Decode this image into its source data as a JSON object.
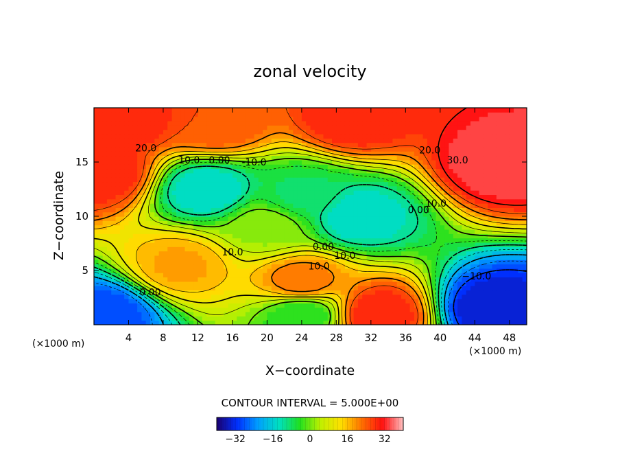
{
  "chart_data": {
    "type": "heatmap",
    "subtype": "filled-contour",
    "title": "zonal velocity",
    "xlabel": "X−coordinate",
    "ylabel": "Z−coordinate",
    "x_unit_left": "(×1000 m)",
    "x_unit_right": "(×1000 m)",
    "xlim": [
      0,
      50
    ],
    "ylim": [
      0,
      20
    ],
    "x_ticks": [
      4,
      8,
      12,
      16,
      20,
      24,
      28,
      32,
      36,
      40,
      44,
      48
    ],
    "y_ticks": [
      5,
      10,
      15
    ],
    "contour_interval_label": "CONTOUR INTERVAL = 5.000E+00",
    "contour_interval": 5,
    "colorbar": {
      "range": [
        -40,
        40
      ],
      "ticks": [
        -32,
        -16,
        0,
        16,
        32
      ],
      "colors": [
        "#1a0070",
        "#0030ff",
        "#00a0ff",
        "#00e0c0",
        "#20e020",
        "#c0f000",
        "#ffe000",
        "#ff7000",
        "#ff1010",
        "#ffc0c0"
      ]
    },
    "field_features": [
      {
        "x": 47,
        "z": 15,
        "value": 35
      },
      {
        "x": 1,
        "z": 14,
        "value": 30
      },
      {
        "x": 4,
        "z": 19,
        "value": 30
      },
      {
        "x": 14,
        "z": 18.5,
        "value": 25
      },
      {
        "x": 30,
        "z": 19,
        "value": 30
      },
      {
        "x": 13,
        "z": 12.5,
        "value": -15
      },
      {
        "x": 30.5,
        "z": 10,
        "value": -15
      },
      {
        "x": 24,
        "z": 12,
        "value": -8
      },
      {
        "x": 24,
        "z": 4,
        "value": 22
      },
      {
        "x": 33,
        "z": 1,
        "value": 30
      },
      {
        "x": 10,
        "z": 5.5,
        "value": 18
      },
      {
        "x": 46,
        "z": 1.5,
        "value": -35
      },
      {
        "x": 1,
        "z": 1,
        "value": -30
      },
      {
        "x": 24,
        "z": 1,
        "value": -5
      },
      {
        "x": 20,
        "z": 9,
        "value": 2
      }
    ],
    "contour_labels": [
      {
        "text": "20.0",
        "x": 6,
        "z": 16.3
      },
      {
        "text": "10.0",
        "x": 11,
        "z": 15.2
      },
      {
        "text": "0.00",
        "x": 14.5,
        "z": 15.2
      },
      {
        "text": "-10.0",
        "x": 18.5,
        "z": 15.0
      },
      {
        "text": "20.0",
        "x": 38.8,
        "z": 16.1
      },
      {
        "text": "30.0",
        "x": 42,
        "z": 15.2
      },
      {
        "text": "10.0",
        "x": 39.5,
        "z": 11.2
      },
      {
        "text": "0.00",
        "x": 37.5,
        "z": 10.6
      },
      {
        "text": "10.0",
        "x": 16,
        "z": 6.7
      },
      {
        "text": "0.00",
        "x": 26.5,
        "z": 7.2
      },
      {
        "text": "10.0",
        "x": 29,
        "z": 6.4
      },
      {
        "text": "10.0",
        "x": 26,
        "z": 5.4
      },
      {
        "text": "−10.0",
        "x": 44.2,
        "z": 4.5
      },
      {
        "text": "0.00",
        "x": 6.5,
        "z": 3.0
      }
    ]
  }
}
